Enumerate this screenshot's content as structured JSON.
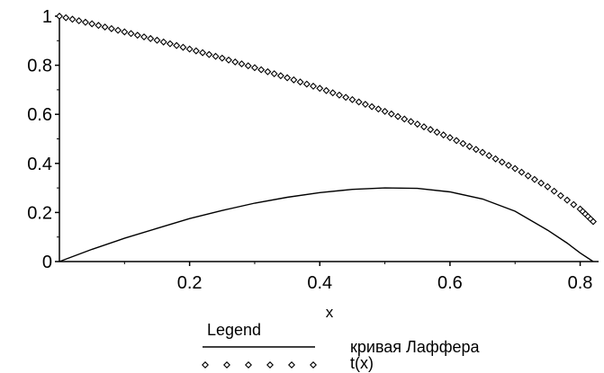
{
  "chart_data": {
    "type": "line",
    "title": "",
    "xlabel": "x",
    "ylabel": "",
    "xlim": [
      0,
      0.82
    ],
    "ylim": [
      0,
      1
    ],
    "x_ticks": [
      0.2,
      0.4,
      0.6,
      0.8
    ],
    "x_tick_labels": [
      "0.2",
      "0.4",
      "0.6",
      "0.8"
    ],
    "y_ticks": [
      0,
      0.2,
      0.4,
      0.6,
      0.8,
      1
    ],
    "y_tick_labels": [
      "0",
      "0.2",
      "0.4",
      "0.6",
      "0.8",
      "1"
    ],
    "grid": false,
    "legend": {
      "title": "Legend",
      "placement": "bottom",
      "entries": [
        {
          "label": "кривая Лаффера",
          "style": "solid-line"
        },
        {
          "label": "t(x)",
          "style": "diamond-markers"
        }
      ]
    },
    "series": [
      {
        "name": "кривая Лаффера",
        "style": "solid-line",
        "color": "#000000",
        "x": [
          0,
          0.05,
          0.1,
          0.15,
          0.2,
          0.25,
          0.3,
          0.35,
          0.4,
          0.45,
          0.5,
          0.55,
          0.6,
          0.65,
          0.7,
          0.75,
          0.78,
          0.8,
          0.82
        ],
        "y": [
          0,
          0.05,
          0.095,
          0.135,
          0.175,
          0.208,
          0.238,
          0.262,
          0.281,
          0.294,
          0.3,
          0.298,
          0.284,
          0.255,
          0.205,
          0.128,
          0.075,
          0.035,
          0
        ]
      },
      {
        "name": "t(x)",
        "style": "diamond-markers",
        "color": "#000000",
        "x": [
          0,
          0.05,
          0.1,
          0.15,
          0.2,
          0.25,
          0.3,
          0.35,
          0.4,
          0.45,
          0.5,
          0.55,
          0.6,
          0.65,
          0.7,
          0.75,
          0.8,
          0.82
        ],
        "y": [
          1,
          0.969,
          0.936,
          0.902,
          0.866,
          0.829,
          0.79,
          0.749,
          0.706,
          0.66,
          0.612,
          0.56,
          0.505,
          0.445,
          0.379,
          0.305,
          0.214,
          0.163
        ]
      }
    ]
  }
}
